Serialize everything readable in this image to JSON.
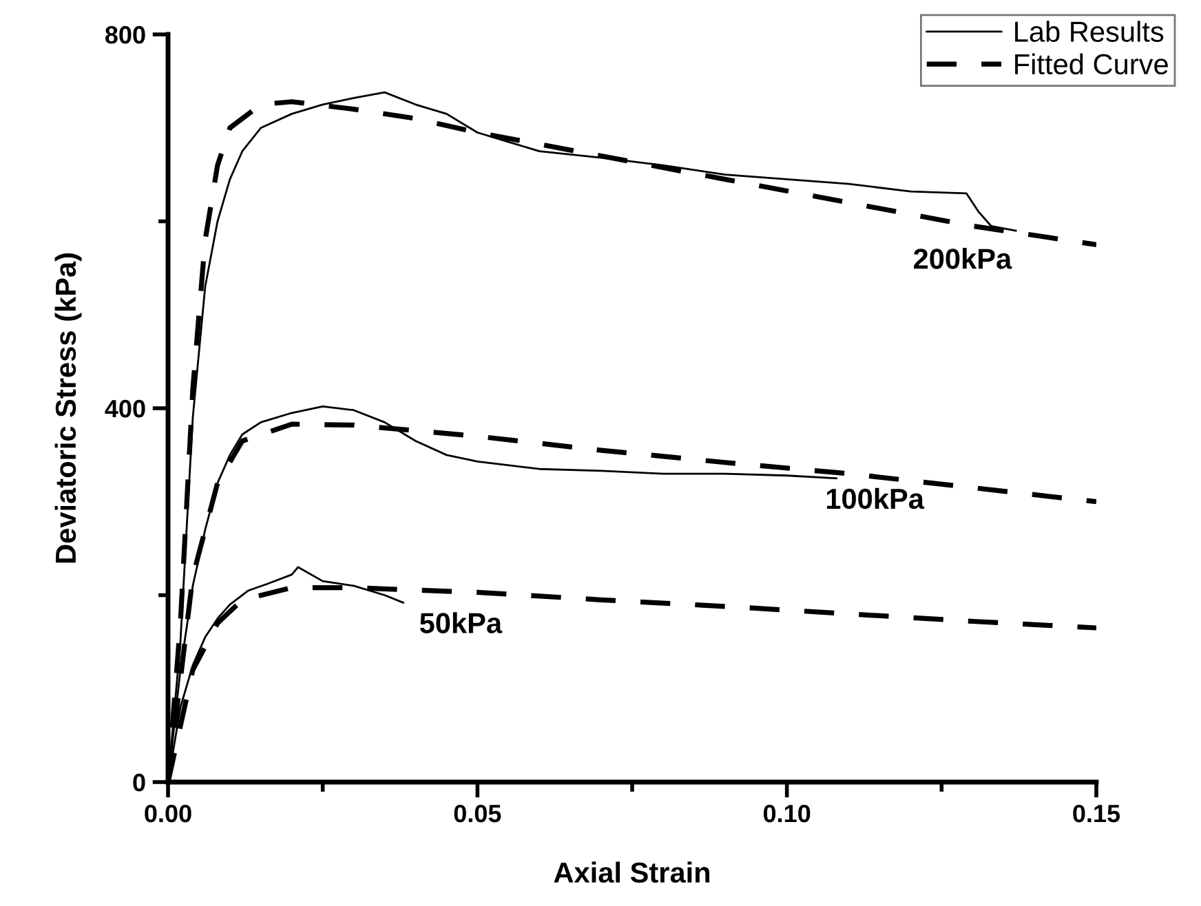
{
  "chart_data": {
    "type": "line",
    "xlabel": "Axial Strain",
    "ylabel": "Deviatoric Stress (kPa)",
    "xlim": [
      0,
      0.15
    ],
    "xticks": [
      {
        "value": 0,
        "label": "0.00"
      },
      {
        "value": 0.025,
        "label": null
      },
      {
        "value": 0.05,
        "label": "0.05"
      },
      {
        "value": 0.075,
        "label": null
      },
      {
        "value": 0.1,
        "label": "0.10"
      },
      {
        "value": 0.125,
        "label": null
      },
      {
        "value": 0.15,
        "label": "0.15"
      }
    ],
    "ylim": [
      0,
      800
    ],
    "yticks": [
      0,
      {
        "value": 200,
        "label": null
      },
      400,
      {
        "value": 600,
        "label": null
      },
      800
    ],
    "grid": false,
    "legend": "top right",
    "marker": "none",
    "series": [
      {
        "name": "Lab Results",
        "color": "#000000",
        "line_style": "solid",
        "x": [
          0,
          0.002,
          0.004,
          0.006,
          0.008,
          0.01,
          0.012,
          0.015,
          0.02,
          0.025,
          0.03,
          0.035,
          0.04,
          0.045,
          0.05,
          0.055,
          0.06,
          0.07,
          0.08,
          0.09,
          0.1,
          0.11,
          0.12,
          0.129,
          0.131,
          0.133,
          0.137
        ],
        "values": [
          0,
          150,
          390,
          530,
          600,
          645,
          675,
          700,
          715,
          725,
          732,
          738,
          725,
          715,
          695,
          685,
          675,
          668,
          660,
          650,
          645,
          640,
          632,
          630,
          610,
          595,
          590
        ]
      },
      {
        "color": "#000000",
        "line_style": "solid",
        "x": [
          0,
          0.002,
          0.004,
          0.006,
          0.008,
          0.01,
          0.012,
          0.015,
          0.02,
          0.025,
          0.03,
          0.035,
          0.04,
          0.045,
          0.05,
          0.06,
          0.07,
          0.08,
          0.09,
          0.1,
          0.108
        ],
        "values": [
          0,
          120,
          210,
          270,
          320,
          350,
          372,
          385,
          395,
          402,
          398,
          385,
          365,
          350,
          343,
          335,
          333,
          330,
          330,
          328,
          325
        ]
      },
      {
        "color": "#000000",
        "line_style": "solid",
        "x": [
          0,
          0.002,
          0.004,
          0.006,
          0.008,
          0.01,
          0.013,
          0.016,
          0.02,
          0.021,
          0.025,
          0.03,
          0.035,
          0.038
        ],
        "values": [
          0,
          80,
          125,
          155,
          175,
          190,
          205,
          212,
          222,
          230,
          215,
          210,
          200,
          192
        ]
      },
      {
        "name": "Fitted Curve",
        "color": "#000000",
        "line_style": "dashed",
        "x": [
          0,
          0.002,
          0.004,
          0.006,
          0.008,
          0.01,
          0.015,
          0.02,
          0.03,
          0.04,
          0.05,
          0.07,
          0.09,
          0.11,
          0.13,
          0.15
        ],
        "values": [
          0,
          170,
          420,
          580,
          660,
          700,
          725,
          728,
          720,
          710,
          695,
          670,
          645,
          620,
          595,
          575
        ]
      },
      {
        "color": "#000000",
        "line_style": "dashed",
        "x": [
          0,
          0.004,
          0.008,
          0.012,
          0.02,
          0.03,
          0.05,
          0.07,
          0.09,
          0.11,
          0.13,
          0.15
        ],
        "values": [
          0,
          220,
          320,
          365,
          383,
          382,
          370,
          355,
          342,
          330,
          315,
          300
        ]
      },
      {
        "color": "#000000",
        "line_style": "dashed",
        "x": [
          0,
          0.004,
          0.008,
          0.012,
          0.02,
          0.03,
          0.05,
          0.07,
          0.09,
          0.11,
          0.13,
          0.15
        ],
        "values": [
          0,
          120,
          170,
          195,
          208,
          208,
          203,
          195,
          188,
          180,
          172,
          165
        ]
      }
    ],
    "annotations": [
      "200kPa",
      "100kPa",
      "50kPa"
    ]
  }
}
